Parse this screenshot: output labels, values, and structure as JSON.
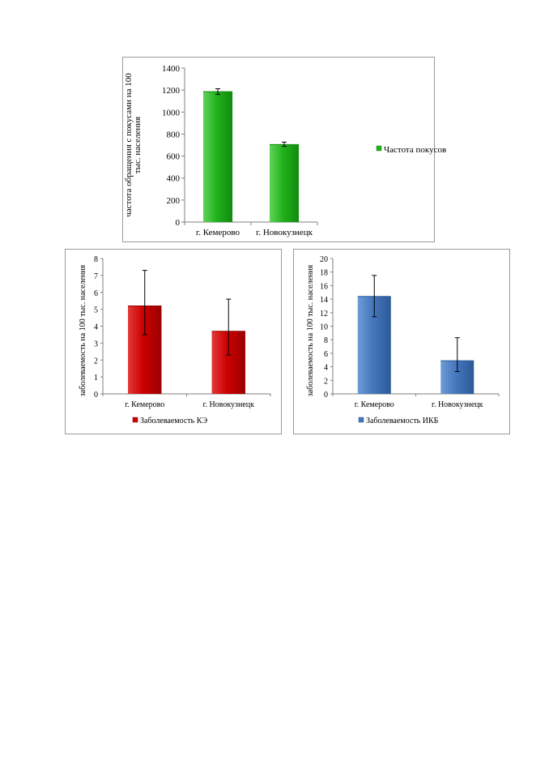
{
  "chart_data": [
    {
      "type": "bar",
      "categories": [
        "г. Кемерово",
        "г. Новокузнецк"
      ],
      "series": [
        {
          "name": "Частота покусов",
          "values": [
            1185,
            705
          ],
          "error_low": [
            1160,
            688
          ],
          "error_high": [
            1212,
            727
          ]
        }
      ],
      "ylabel": "частота обращения с покусами на 100 тыс. населения",
      "ylabel_lines": [
        "частота обращения с покусами на 100",
        "тыс. населения"
      ],
      "ylim": [
        0,
        1400
      ],
      "yticks": [
        0,
        200,
        400,
        600,
        800,
        1000,
        1200,
        1400
      ],
      "legend_position": "right",
      "colors": {
        "bar_light": "#5fd35a",
        "bar_main": "#22b21c",
        "bar_dark": "#118a0e"
      }
    },
    {
      "type": "bar",
      "categories": [
        "г. Кемерово",
        "г. Новокузнецк"
      ],
      "series": [
        {
          "name": "Заболеваемость КЭ",
          "values": [
            5.2,
            3.7
          ],
          "error_low": [
            3.5,
            2.3
          ],
          "error_high": [
            7.3,
            5.6
          ]
        }
      ],
      "ylabel": "заболеваемость на 100 тыс. населения",
      "ylabel_lines": [
        "заболеваемость на 100 тыс. населения"
      ],
      "ylim": [
        0,
        8
      ],
      "yticks": [
        0,
        1,
        2,
        3,
        4,
        5,
        6,
        7,
        8
      ],
      "legend_position": "bottom",
      "colors": {
        "bar_light": "#e43838",
        "bar_main": "#cc0000",
        "bar_dark": "#9a0000"
      }
    },
    {
      "type": "bar",
      "categories": [
        "г. Кемерово",
        "г. Новокузнецк"
      ],
      "series": [
        {
          "name": "Заболеваемость ИКБ",
          "values": [
            14.4,
            4.9
          ],
          "error_low": [
            11.4,
            3.3
          ],
          "error_high": [
            17.5,
            8.3
          ]
        }
      ],
      "ylabel": "заболеваемость на 100 тыс. населения",
      "ylabel_lines": [
        "заболеваемость на 100 тыс. населения"
      ],
      "ylim": [
        0,
        20
      ],
      "yticks": [
        0,
        2,
        4,
        6,
        8,
        10,
        12,
        14,
        16,
        18,
        20
      ],
      "legend_position": "bottom",
      "colors": {
        "bar_light": "#6e9bd3",
        "bar_main": "#4577be",
        "bar_dark": "#2c5a98"
      }
    }
  ]
}
